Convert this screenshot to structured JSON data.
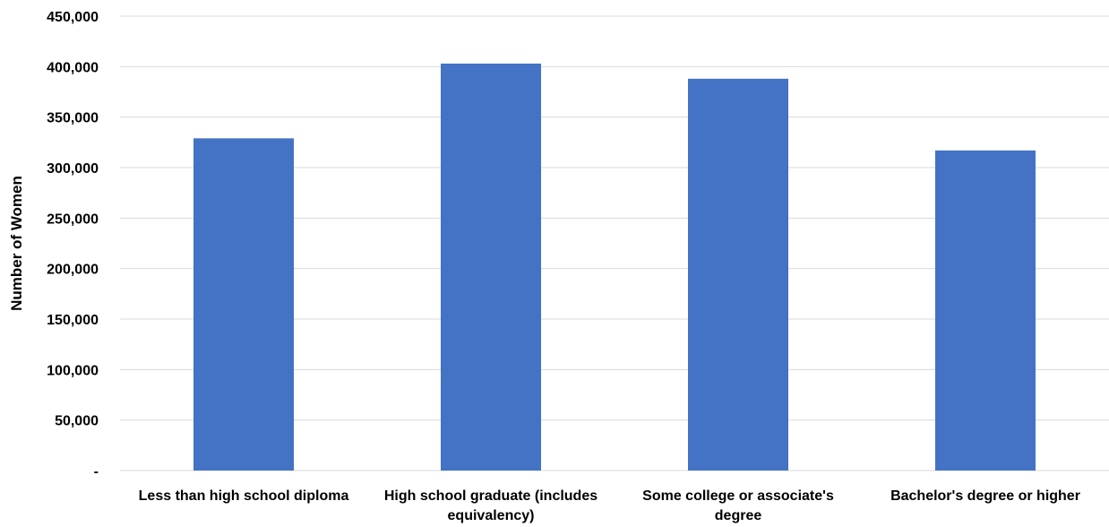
{
  "chart_data": {
    "type": "bar",
    "title": "",
    "xlabel": "",
    "ylabel": "Number of Women",
    "categories": [
      "Less than high school diploma",
      "High school graduate (includes equivalency)",
      "Some college or associate's degree",
      "Bachelor's degree or higher"
    ],
    "category_label_lines": [
      [
        "Less than high school diploma"
      ],
      [
        "High school graduate (includes",
        "equivalency)"
      ],
      [
        "Some college or associate's",
        "degree"
      ],
      [
        "Bachelor's degree or higher"
      ]
    ],
    "values": [
      329000,
      403000,
      388000,
      317000
    ],
    "ylim": [
      0,
      450000
    ],
    "y_ticks": [
      0,
      50000,
      100000,
      150000,
      200000,
      250000,
      300000,
      350000,
      400000,
      450000
    ],
    "y_tick_labels": [
      "-",
      "50,000",
      "100,000",
      "150,000",
      "200,000",
      "250,000",
      "300,000",
      "350,000",
      "400,000",
      "450,000"
    ],
    "grid": true,
    "legend": "none",
    "bar_color": "#4472c4"
  }
}
